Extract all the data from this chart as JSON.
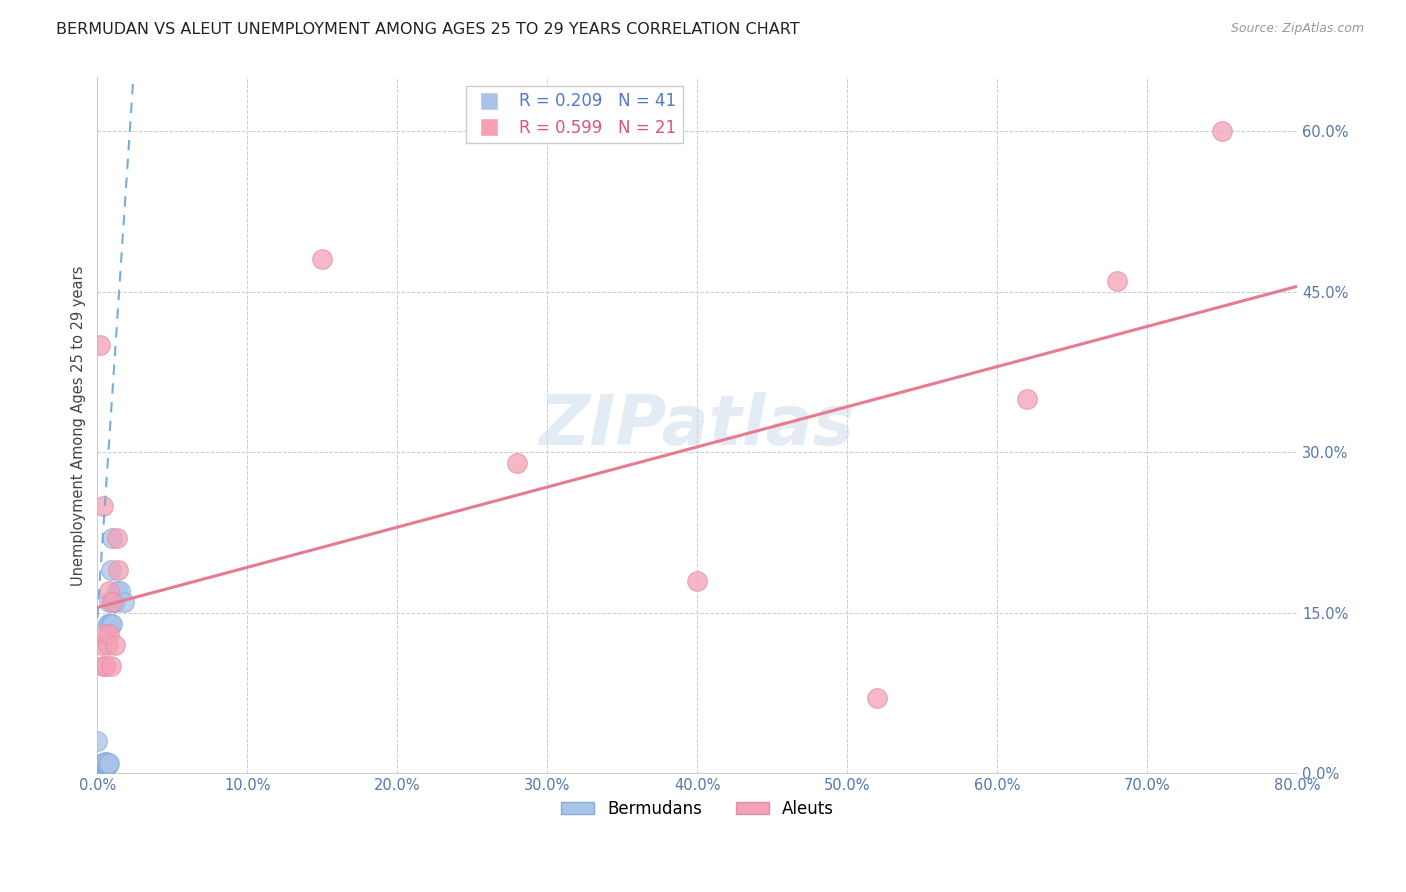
{
  "title": "BERMUDAN VS ALEUT UNEMPLOYMENT AMONG AGES 25 TO 29 YEARS CORRELATION CHART",
  "source": "Source: ZipAtlas.com",
  "ylabel": "Unemployment Among Ages 25 to 29 years",
  "xlim": [
    0.0,
    0.8
  ],
  "ylim": [
    0.0,
    0.65
  ],
  "yticks": [
    0.0,
    0.15,
    0.3,
    0.45,
    0.6
  ],
  "xticks": [
    0.0,
    0.1,
    0.2,
    0.3,
    0.4,
    0.5,
    0.6,
    0.7,
    0.8
  ],
  "yticklabels": [
    "0.0%",
    "15.0%",
    "30.0%",
    "45.0%",
    "60.0%"
  ],
  "xticklabels": [
    "0.0%",
    "10.0%",
    "20.0%",
    "30.0%",
    "40.0%",
    "50.0%",
    "60.0%",
    "70.0%",
    "80.0%"
  ],
  "bermudans_x": [
    0.0,
    0.0,
    0.001,
    0.001,
    0.001,
    0.002,
    0.002,
    0.002,
    0.002,
    0.003,
    0.003,
    0.003,
    0.003,
    0.004,
    0.004,
    0.004,
    0.004,
    0.005,
    0.005,
    0.005,
    0.005,
    0.005,
    0.006,
    0.006,
    0.006,
    0.006,
    0.007,
    0.007,
    0.007,
    0.008,
    0.008,
    0.008,
    0.009,
    0.009,
    0.01,
    0.01,
    0.011,
    0.012,
    0.013,
    0.015,
    0.018
  ],
  "bermudans_y": [
    0.0,
    0.03,
    0.005,
    0.006,
    0.008,
    0.004,
    0.006,
    0.007,
    0.008,
    0.006,
    0.007,
    0.008,
    0.009,
    0.006,
    0.007,
    0.008,
    0.01,
    0.007,
    0.008,
    0.009,
    0.01,
    0.011,
    0.008,
    0.009,
    0.01,
    0.011,
    0.008,
    0.009,
    0.14,
    0.01,
    0.14,
    0.16,
    0.14,
    0.19,
    0.14,
    0.22,
    0.16,
    0.16,
    0.17,
    0.17,
    0.16
  ],
  "aleuts_x": [
    0.002,
    0.003,
    0.004,
    0.004,
    0.005,
    0.006,
    0.007,
    0.008,
    0.008,
    0.009,
    0.01,
    0.012,
    0.013,
    0.014,
    0.15,
    0.28,
    0.4,
    0.52,
    0.62,
    0.68,
    0.75
  ],
  "aleuts_y": [
    0.4,
    0.12,
    0.1,
    0.25,
    0.13,
    0.1,
    0.12,
    0.13,
    0.17,
    0.1,
    0.16,
    0.12,
    0.22,
    0.19,
    0.48,
    0.29,
    0.18,
    0.07,
    0.35,
    0.46,
    0.6
  ],
  "bermudans_color": "#a8c4e8",
  "aleuts_color": "#f4a0b5",
  "bermudans_line_color": "#7aacdc",
  "aleuts_line_color": "#e87a90",
  "bermudan_line_x": [
    0.0,
    0.024
  ],
  "bermudan_line_y": [
    0.145,
    0.65
  ],
  "aleut_line_x": [
    0.0,
    0.8
  ],
  "aleut_line_y": [
    0.155,
    0.455
  ],
  "r_bermudan": 0.209,
  "n_bermudan": 41,
  "r_aleut": 0.599,
  "n_aleut": 21,
  "grid_color": "#cccccc",
  "background_color": "#ffffff",
  "watermark_text": "ZIPatlas",
  "marker_size": 200,
  "title_fontsize": 11.5,
  "axis_label_fontsize": 10.5,
  "tick_fontsize": 10.5,
  "legend_fontsize": 12
}
